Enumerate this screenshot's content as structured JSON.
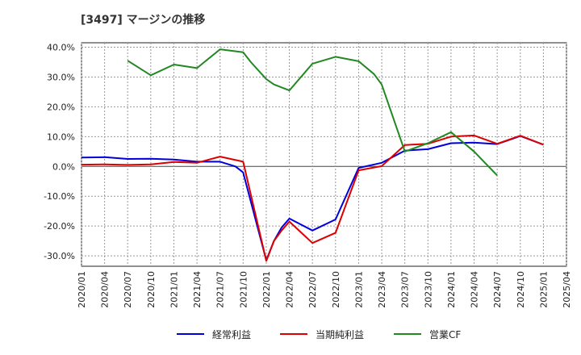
{
  "chart_data": {
    "type": "line",
    "title": "[3497]  マージンの推移",
    "xlabel": "",
    "ylabel": "",
    "ylim": [
      -33.5,
      41.5
    ],
    "yticks": [
      40,
      30,
      20,
      10,
      0,
      -10,
      -20,
      -30
    ],
    "ytick_labels": [
      "40.0%",
      "30.0%",
      "20.0%",
      "10.0%",
      "0.0%",
      "-10.0%",
      "-20.0%",
      "-30.0%"
    ],
    "x_tick_labels": [
      "2020/01",
      "2020/04",
      "2020/07",
      "2020/10",
      "2021/01",
      "2021/04",
      "2021/07",
      "2021/10",
      "2022/01",
      "2022/04",
      "2022/07",
      "2022/10",
      "2023/01",
      "2023/04",
      "2023/07",
      "2023/10",
      "2024/01",
      "2024/04",
      "2024/07",
      "2024/10",
      "2025/01",
      "2025/04"
    ],
    "grid": true,
    "legend_position": "bottom",
    "series": [
      {
        "name": "経常利益",
        "color": "#0000dd",
        "points": [
          [
            "2020/01",
            3.0
          ],
          [
            "2020/04",
            3.1
          ],
          [
            "2020/07",
            2.5
          ],
          [
            "2020/10",
            2.6
          ],
          [
            "2021/01",
            2.3
          ],
          [
            "2021/04",
            1.6
          ],
          [
            "2021/07",
            1.6
          ],
          [
            "2021/09",
            0.0
          ],
          [
            "2021/10",
            -2.0
          ],
          [
            "2022/01",
            -31.5
          ],
          [
            "2022/02",
            -25.0
          ],
          [
            "2022/03",
            -20.5
          ],
          [
            "2022/04",
            -17.5
          ],
          [
            "2022/07",
            -21.5
          ],
          [
            "2022/10",
            -17.8
          ],
          [
            "2023/01",
            -0.5
          ],
          [
            "2023/04",
            1.2
          ],
          [
            "2023/07",
            5.3
          ],
          [
            "2023/10",
            5.8
          ],
          [
            "2024/01",
            7.8
          ],
          [
            "2024/04",
            8.0
          ],
          [
            "2024/07",
            7.5
          ],
          [
            "2024/10",
            10.2
          ],
          [
            "2025/01",
            7.3
          ]
        ]
      },
      {
        "name": "当期純利益",
        "color": "#dd0000",
        "points": [
          [
            "2020/01",
            0.6
          ],
          [
            "2020/04",
            0.7
          ],
          [
            "2020/07",
            0.5
          ],
          [
            "2020/10",
            0.7
          ],
          [
            "2021/01",
            1.5
          ],
          [
            "2021/04",
            1.2
          ],
          [
            "2021/07",
            3.3
          ],
          [
            "2021/10",
            1.6
          ],
          [
            "2022/01",
            -31.7
          ],
          [
            "2022/02",
            -25.0
          ],
          [
            "2022/03",
            -21.5
          ],
          [
            "2022/04",
            -18.5
          ],
          [
            "2022/07",
            -25.7
          ],
          [
            "2022/10",
            -22.3
          ],
          [
            "2023/01",
            -1.3
          ],
          [
            "2023/04",
            0.1
          ],
          [
            "2023/07",
            7.2
          ],
          [
            "2023/10",
            7.6
          ],
          [
            "2024/01",
            10.0
          ],
          [
            "2024/04",
            10.4
          ],
          [
            "2024/07",
            7.6
          ],
          [
            "2024/10",
            10.3
          ],
          [
            "2025/01",
            7.3
          ]
        ]
      },
      {
        "name": "営業CF",
        "color": "#228822",
        "points": [
          [
            "2020/07",
            35.5
          ],
          [
            "2020/10",
            30.6
          ],
          [
            "2021/01",
            34.2
          ],
          [
            "2021/04",
            33.0
          ],
          [
            "2021/07",
            39.3
          ],
          [
            "2021/10",
            38.3
          ],
          [
            "2021/11",
            35.0
          ],
          [
            "2022/01",
            29.3
          ],
          [
            "2022/02",
            27.5
          ],
          [
            "2022/04",
            25.5
          ],
          [
            "2022/07",
            34.5
          ],
          [
            "2022/10",
            36.8
          ],
          [
            "2023/01",
            35.3
          ],
          [
            "2023/03",
            31.0
          ],
          [
            "2023/04",
            27.5
          ],
          [
            "2023/07",
            5.0
          ],
          [
            "2023/10",
            7.8
          ],
          [
            "2024/01",
            11.5
          ],
          [
            "2024/04",
            5.0
          ],
          [
            "2024/07",
            -3.0
          ]
        ]
      }
    ]
  }
}
